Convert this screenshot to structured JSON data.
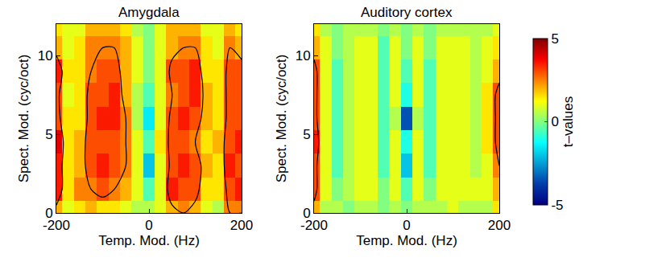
{
  "chart_data": [
    {
      "type": "heatmap",
      "title": "Amygdala",
      "x_label": "Temp. Mod. (Hz)",
      "y_label": "Spect. Mod. (cyc/oct)",
      "x": [
        -200,
        -175,
        -150,
        -125,
        -100,
        -75,
        -50,
        -25,
        0,
        25,
        50,
        75,
        100,
        125,
        150,
        175,
        200
      ],
      "y": [
        0,
        1.5,
        3,
        4.5,
        6,
        7.5,
        9,
        10.5,
        12
      ],
      "z": [
        [
          2.0,
          1.0,
          1.5,
          2.0,
          1.5,
          1.5,
          1.0,
          0.5,
          0.5,
          1.0,
          2.0,
          2.5,
          2.0,
          1.0,
          0.5,
          2.5,
          2.5
        ],
        [
          3.5,
          1.5,
          2.5,
          2.5,
          3.0,
          2.5,
          2.0,
          1.0,
          -0.5,
          1.0,
          3.5,
          3.0,
          3.0,
          1.5,
          1.5,
          3.0,
          3.5
        ],
        [
          3.5,
          1.5,
          2.0,
          3.0,
          3.5,
          3.0,
          2.5,
          1.0,
          -2.0,
          1.0,
          3.0,
          3.5,
          3.0,
          2.0,
          1.5,
          3.5,
          3.0
        ],
        [
          4.0,
          1.5,
          2.0,
          3.0,
          3.0,
          3.0,
          2.5,
          1.0,
          -0.5,
          1.5,
          3.0,
          3.0,
          2.5,
          1.5,
          2.0,
          3.0,
          3.5
        ],
        [
          3.0,
          1.5,
          1.5,
          3.0,
          3.5,
          3.5,
          2.5,
          0.5,
          -1.5,
          1.0,
          3.0,
          3.5,
          3.0,
          2.0,
          1.5,
          3.0,
          3.0
        ],
        [
          3.0,
          1.0,
          1.5,
          3.0,
          3.0,
          3.5,
          2.0,
          0.5,
          -0.5,
          1.0,
          2.5,
          3.0,
          3.5,
          2.0,
          1.5,
          3.0,
          3.0
        ],
        [
          3.5,
          1.5,
          1.5,
          2.5,
          3.0,
          3.0,
          2.0,
          1.0,
          0.0,
          1.0,
          3.0,
          3.0,
          3.5,
          1.5,
          1.5,
          3.0,
          3.0
        ],
        [
          2.0,
          1.0,
          1.5,
          2.5,
          2.5,
          2.5,
          2.0,
          1.0,
          0.0,
          1.0,
          2.0,
          2.5,
          2.5,
          1.5,
          1.0,
          2.5,
          2.0
        ],
        [
          1.5,
          1.0,
          1.0,
          2.0,
          2.0,
          2.0,
          1.5,
          0.5,
          0.0,
          1.0,
          2.0,
          2.0,
          2.0,
          1.0,
          1.0,
          2.0,
          1.5
        ]
      ],
      "contour_level": 2.5,
      "xlim": [
        -200,
        200
      ],
      "xticks": [
        -200,
        0,
        200
      ],
      "ylim": [
        0,
        12
      ],
      "yticks": [
        0,
        5,
        10
      ]
    },
    {
      "type": "heatmap",
      "title": "Auditory cortex",
      "x_label": "Temp. Mod. (Hz)",
      "y_label": "Spect. Mod. (cyc/oct)",
      "x": [
        -200,
        -175,
        -150,
        -125,
        -100,
        -75,
        -50,
        -25,
        0,
        25,
        50,
        75,
        100,
        125,
        150,
        175,
        200
      ],
      "y": [
        0,
        1.5,
        3,
        4.5,
        6,
        7.5,
        9,
        10.5,
        12
      ],
      "z": [
        [
          2.0,
          0.5,
          0.5,
          0.0,
          0.5,
          0.5,
          0.0,
          0.5,
          0.0,
          0.5,
          0.5,
          0.5,
          1.0,
          0.5,
          0.5,
          0.5,
          1.5
        ],
        [
          3.0,
          1.0,
          0.0,
          0.5,
          1.0,
          1.0,
          0.0,
          1.0,
          -0.5,
          1.0,
          0.0,
          1.0,
          1.0,
          1.0,
          1.0,
          1.0,
          2.0
        ],
        [
          3.0,
          1.0,
          -0.5,
          0.5,
          1.0,
          1.0,
          -0.5,
          1.0,
          -2.0,
          1.0,
          -0.5,
          1.0,
          1.0,
          1.0,
          0.5,
          1.0,
          2.5
        ],
        [
          3.5,
          1.0,
          -0.5,
          0.5,
          1.0,
          1.0,
          -0.5,
          1.0,
          -1.0,
          1.0,
          -0.5,
          1.0,
          1.0,
          1.0,
          0.5,
          1.5,
          3.0
        ],
        [
          3.0,
          1.0,
          -0.5,
          0.5,
          1.0,
          1.0,
          -0.5,
          0.5,
          -3.5,
          0.5,
          -0.5,
          1.0,
          1.0,
          1.0,
          0.5,
          1.5,
          3.0
        ],
        [
          3.0,
          1.0,
          -0.5,
          0.5,
          1.0,
          1.0,
          -0.5,
          1.0,
          -1.0,
          1.0,
          -0.5,
          1.0,
          1.0,
          1.0,
          0.5,
          1.5,
          3.0
        ],
        [
          3.0,
          1.0,
          -0.5,
          0.5,
          1.0,
          1.0,
          -0.5,
          1.0,
          -0.5,
          1.0,
          -0.5,
          1.0,
          1.0,
          1.0,
          0.5,
          1.0,
          2.0
        ],
        [
          2.0,
          1.0,
          0.0,
          0.5,
          1.0,
          1.0,
          -0.5,
          1.0,
          0.0,
          1.0,
          0.0,
          1.0,
          1.0,
          1.0,
          0.5,
          1.0,
          1.5
        ],
        [
          1.5,
          0.5,
          0.0,
          0.5,
          0.5,
          0.5,
          0.0,
          0.5,
          0.0,
          0.5,
          0.0,
          0.5,
          0.5,
          0.5,
          0.5,
          0.5,
          1.0
        ]
      ],
      "contour_level": 2.5,
      "xlim": [
        -200,
        200
      ],
      "xticks": [
        -200,
        0,
        200
      ],
      "ylim": [
        0,
        12
      ],
      "yticks": [
        0,
        5,
        10
      ],
      "colorbar": {
        "title": "t–values",
        "range": [
          -5,
          5
        ],
        "ticks": [
          -5,
          0,
          5
        ]
      }
    }
  ]
}
